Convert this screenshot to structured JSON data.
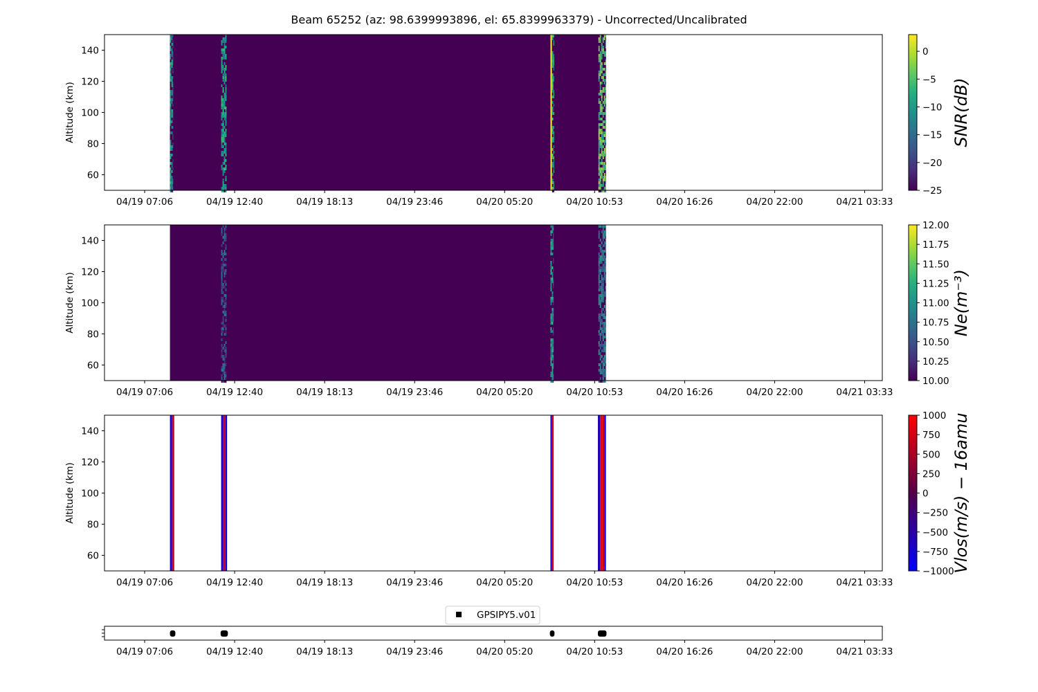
{
  "chart_data": {
    "title": "Beam 65252 (az: 98.6399993896, el: 65.8399963379) - Uncorrected/Uncalibrated",
    "x_tick_labels": [
      "04/19 07:06",
      "04/19 12:40",
      "04/19 18:13",
      "04/19 23:46",
      "04/20 05:20",
      "04/20 10:53",
      "04/20 16:26",
      "04/20 22:00",
      "04/21 03:33"
    ],
    "panels": [
      {
        "type": "heatmap",
        "ylabel": "Altitude (km)",
        "ylim": [
          50,
          150
        ],
        "yticks": [
          60,
          80,
          100,
          120,
          140
        ],
        "colorbar": {
          "label": "SNR(dB)",
          "colormap": "viridis",
          "range": [
            -25,
            3
          ],
          "ticks": [
            0,
            -5,
            -10,
            -15,
            -20,
            -25
          ],
          "tick_labels": [
            "0",
            "−5",
            "−10",
            "−15",
            "−20",
            "−25"
          ]
        },
        "background_value": -25,
        "coverage": [
          [
            "04/19 08:40",
            "04/20 11:38"
          ]
        ],
        "bursts": [
          {
            "start": "04/19 08:40",
            "end": "04/19 08:52",
            "value": -12,
            "speckle": true
          },
          {
            "start": "04/19 11:50",
            "end": "04/19 12:10",
            "value": -10,
            "speckle": true
          },
          {
            "start": "04/20 08:12",
            "end": "04/20 08:18",
            "value": 2
          },
          {
            "start": "04/20 08:18",
            "end": "04/20 08:26",
            "value": -8,
            "speckle": true
          },
          {
            "start": "04/20 11:10",
            "end": "04/20 11:38",
            "value": -5,
            "speckle": true
          }
        ]
      },
      {
        "type": "heatmap",
        "ylabel": "Altitude (km)",
        "ylim": [
          50,
          150
        ],
        "yticks": [
          60,
          80,
          100,
          120,
          140
        ],
        "colorbar": {
          "label": "Ne(m⁻³)",
          "colormap": "viridis",
          "range": [
            10.0,
            12.0
          ],
          "ticks": [
            12.0,
            11.75,
            11.5,
            11.25,
            11.0,
            10.75,
            10.5,
            10.25,
            10.0
          ],
          "tick_labels": [
            "12.00",
            "11.75",
            "11.50",
            "11.25",
            "11.00",
            "10.75",
            "10.50",
            "10.25",
            "10.00"
          ]
        },
        "background_value": 10.0,
        "coverage": [
          [
            "04/19 08:40",
            "04/20 11:38"
          ]
        ],
        "bursts": [
          {
            "start": "04/19 11:50",
            "end": "04/19 12:10",
            "value": 10.5,
            "speckle": true
          },
          {
            "start": "04/20 08:12",
            "end": "04/20 08:24",
            "value": 11.0,
            "speckle": true
          },
          {
            "start": "04/20 11:10",
            "end": "04/20 11:38",
            "value": 10.8,
            "speckle": true
          }
        ]
      },
      {
        "type": "heatmap",
        "ylabel": "Altitude (km)",
        "ylim": [
          50,
          150
        ],
        "yticks": [
          60,
          80,
          100,
          120,
          140
        ],
        "colorbar": {
          "label": "Vlos(m/s) − 16amu",
          "colormap": "bwr",
          "range": [
            -1000,
            1000
          ],
          "ticks": [
            1000,
            750,
            500,
            250,
            0,
            -250,
            -500,
            -750,
            -1000
          ],
          "tick_labels": [
            "1000",
            "750",
            "500",
            "250",
            "0",
            "−250",
            "−500",
            "−750",
            "−1000"
          ]
        },
        "bursts": [
          {
            "start": "04/19 08:40",
            "end": "04/19 08:48",
            "value": -700
          },
          {
            "start": "04/19 08:48",
            "end": "04/19 08:56",
            "value": 800
          },
          {
            "start": "04/19 11:50",
            "end": "04/19 11:58",
            "value": -800
          },
          {
            "start": "04/19 11:58",
            "end": "04/19 12:06",
            "value": 700
          },
          {
            "start": "04/19 12:06",
            "end": "04/19 12:12",
            "value": -900
          },
          {
            "start": "04/20 08:12",
            "end": "04/20 08:18",
            "value": -800
          },
          {
            "start": "04/20 08:18",
            "end": "04/20 08:24",
            "value": 800
          },
          {
            "start": "04/20 11:08",
            "end": "04/20 11:16",
            "value": -600
          },
          {
            "start": "04/20 11:16",
            "end": "04/20 11:24",
            "value": 900
          },
          {
            "start": "04/20 11:24",
            "end": "04/20 11:32",
            "value": 700
          },
          {
            "start": "04/20 11:32",
            "end": "04/20 11:38",
            "value": -900
          }
        ]
      },
      {
        "type": "scatter",
        "legend": {
          "label": "GPSIPY5.v01",
          "placement": "upper-center",
          "marker": "square",
          "color": "#000000"
        },
        "segments": [
          [
            "04/19 08:40",
            "04/19 09:00"
          ],
          [
            "04/19 11:48",
            "04/19 12:15"
          ],
          [
            "04/20 08:10",
            "04/20 08:27"
          ],
          [
            "04/20 11:08",
            "04/20 11:40"
          ]
        ]
      }
    ]
  }
}
